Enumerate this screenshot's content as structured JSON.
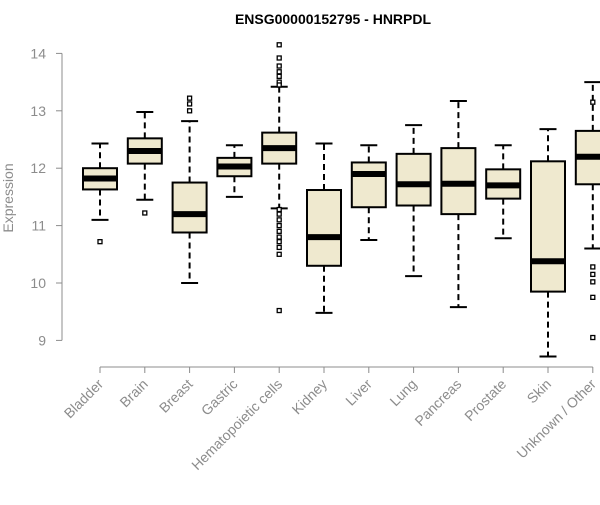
{
  "chart_data": {
    "type": "box",
    "title": "ENSG00000152795 - HNRPDL",
    "ylabel": "Expression",
    "xlabel": "",
    "ylim": [
      8.8,
      14.2
    ],
    "yticks": [
      9,
      10,
      11,
      12,
      13,
      14
    ],
    "ytick_labels": [
      "9",
      "10",
      "11",
      "12",
      "13",
      "14"
    ],
    "grid": false,
    "legend": "none",
    "colors": {
      "box_fill": "#efe9cf",
      "stroke": "#000000",
      "axis": "#8c8c8c"
    },
    "categories": [
      "Bladder",
      "Brain",
      "Breast",
      "Gastric",
      "Hematopoietic cells",
      "Kidney",
      "Liver",
      "Lung",
      "Pancreas",
      "Prostate",
      "Skin",
      "Unknown / Other"
    ],
    "boxes": [
      {
        "category": "Bladder",
        "whisker_low": 11.1,
        "q1": 11.63,
        "median": 11.82,
        "q3": 12.0,
        "whisker_high": 12.43,
        "outliers": [
          10.72
        ]
      },
      {
        "category": "Brain",
        "whisker_low": 11.45,
        "q1": 12.08,
        "median": 12.3,
        "q3": 12.52,
        "whisker_high": 12.98,
        "outliers": [
          11.22
        ]
      },
      {
        "category": "Breast",
        "whisker_low": 10.0,
        "q1": 10.88,
        "median": 11.2,
        "q3": 11.75,
        "whisker_high": 12.82,
        "outliers": [
          13.0,
          13.12,
          13.22
        ]
      },
      {
        "category": "Gastric",
        "whisker_low": 11.5,
        "q1": 11.86,
        "median": 12.03,
        "q3": 12.18,
        "whisker_high": 12.4,
        "outliers": []
      },
      {
        "category": "Hematopoietic cells",
        "whisker_low": 11.3,
        "q1": 12.08,
        "median": 12.35,
        "q3": 12.62,
        "whisker_high": 13.42,
        "outliers": [
          14.15,
          13.92,
          13.78,
          13.68,
          13.6,
          13.5,
          13.45,
          11.28,
          11.2,
          11.1,
          11.0,
          10.9,
          10.8,
          10.72,
          10.62,
          10.5,
          9.52
        ]
      },
      {
        "category": "Kidney",
        "whisker_low": 9.48,
        "q1": 10.3,
        "median": 10.8,
        "q3": 11.62,
        "whisker_high": 12.43,
        "outliers": []
      },
      {
        "category": "Liver",
        "whisker_low": 10.75,
        "q1": 11.32,
        "median": 11.9,
        "q3": 12.1,
        "whisker_high": 12.4,
        "outliers": []
      },
      {
        "category": "Lung",
        "whisker_low": 10.12,
        "q1": 11.35,
        "median": 11.72,
        "q3": 12.25,
        "whisker_high": 12.75,
        "outliers": []
      },
      {
        "category": "Pancreas",
        "whisker_low": 9.58,
        "q1": 11.2,
        "median": 11.73,
        "q3": 12.35,
        "whisker_high": 13.17,
        "outliers": []
      },
      {
        "category": "Prostate",
        "whisker_low": 10.78,
        "q1": 11.47,
        "median": 11.7,
        "q3": 11.98,
        "whisker_high": 12.4,
        "outliers": []
      },
      {
        "category": "Skin",
        "whisker_low": 8.72,
        "q1": 9.85,
        "median": 10.38,
        "q3": 12.12,
        "whisker_high": 12.68,
        "outliers": []
      },
      {
        "category": "Unknown / Other",
        "whisker_low": 10.6,
        "q1": 11.72,
        "median": 12.2,
        "q3": 12.65,
        "whisker_high": 13.5,
        "outliers": [
          13.15,
          10.28,
          10.15,
          10.02,
          9.75,
          9.05
        ]
      }
    ]
  }
}
